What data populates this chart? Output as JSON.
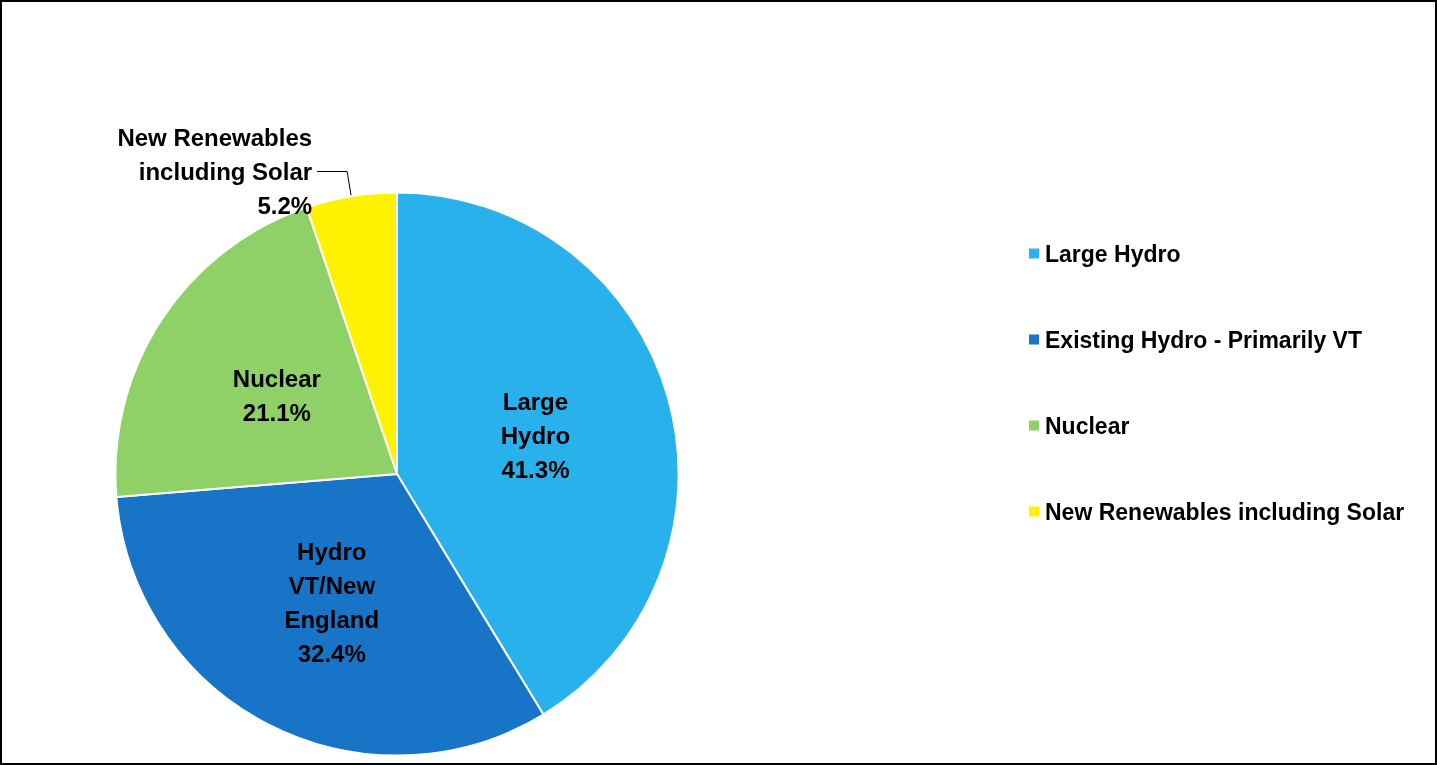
{
  "chart_data": {
    "type": "pie",
    "categories": [
      "Large Hydro",
      "Existing Hydro - Primarily VT",
      "Nuclear",
      "New Renewables including Solar"
    ],
    "values": [
      41.3,
      32.4,
      21.1,
      5.2
    ],
    "colors": [
      "#29b1ec",
      "#1874c6",
      "#8fd167",
      "#fff200"
    ],
    "value_labels": [
      "Large\nHydro\n41.3%",
      "Hydro\nVT/New\nEngland\n32.4%",
      "Nuclear\n21.1%",
      "New Renewables\nincluding Solar\n5.2%"
    ],
    "legend": "right"
  }
}
